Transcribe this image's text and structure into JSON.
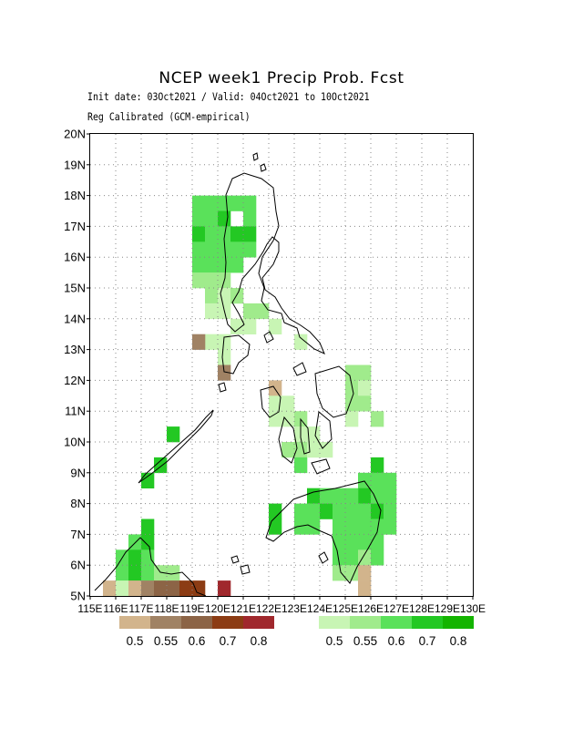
{
  "header": {
    "title": "NCEP week1 Precip Prob. Fcst",
    "subtitle_dates": "Init date: 03Oct2021 / Valid: 04Oct2021 to 10Oct2021",
    "subtitle_method": "Reg Calibrated (GCM-empirical)"
  },
  "axes": {
    "lat_labels": [
      "5N",
      "6N",
      "7N",
      "8N",
      "9N",
      "10N",
      "11N",
      "12N",
      "13N",
      "14N",
      "15N",
      "16N",
      "17N",
      "18N",
      "19N",
      "20N"
    ],
    "lon_labels": [
      "115E",
      "116E",
      "117E",
      "118E",
      "119E",
      "120E",
      "121E",
      "122E",
      "123E",
      "124E",
      "125E",
      "126E",
      "127E",
      "128E",
      "129E",
      "130E"
    ]
  },
  "colors": {
    "dry": [
      "#d2b48c",
      "#a08264",
      "#8c6446",
      "#8c3c14",
      "#a0282d"
    ],
    "wet": [
      "#c8f5b4",
      "#a0eb8c",
      "#5ae15a",
      "#23c823",
      "#14b400"
    ],
    "coast": "#000000",
    "grid": "#888888"
  },
  "legend": {
    "dry_labels": [
      "0.5",
      "0.55",
      "0.6",
      "0.7",
      "0.8"
    ],
    "wet_labels": [
      "0.5",
      "0.55",
      "0.6",
      "0.7",
      "0.8"
    ]
  },
  "chart_data": {
    "type": "heatmap",
    "xlim": [
      115,
      130
    ],
    "ylim": [
      5,
      20
    ],
    "cell_size_deg": 0.5,
    "legend_placement": "bottom",
    "grid": true,
    "cells": [
      {
        "lon": 119.25,
        "lat": 17.75,
        "cat": "wet",
        "level": 2
      },
      {
        "lon": 119.25,
        "lat": 17.25,
        "cat": "wet",
        "level": 2
      },
      {
        "lon": 119.25,
        "lat": 16.75,
        "cat": "wet",
        "level": 3
      },
      {
        "lon": 119.25,
        "lat": 16.25,
        "cat": "wet",
        "level": 2
      },
      {
        "lon": 119.75,
        "lat": 17.75,
        "cat": "wet",
        "level": 2
      },
      {
        "lon": 119.75,
        "lat": 17.25,
        "cat": "wet",
        "level": 2
      },
      {
        "lon": 119.75,
        "lat": 16.75,
        "cat": "wet",
        "level": 2
      },
      {
        "lon": 119.75,
        "lat": 16.25,
        "cat": "wet",
        "level": 2
      },
      {
        "lon": 120.25,
        "lat": 17.75,
        "cat": "wet",
        "level": 2
      },
      {
        "lon": 120.25,
        "lat": 17.25,
        "cat": "wet",
        "level": 3
      },
      {
        "lon": 120.25,
        "lat": 16.75,
        "cat": "wet",
        "level": 2
      },
      {
        "lon": 120.25,
        "lat": 16.25,
        "cat": "wet",
        "level": 2
      },
      {
        "lon": 120.75,
        "lat": 17.75,
        "cat": "wet",
        "level": 2
      },
      {
        "lon": 120.75,
        "lat": 16.75,
        "cat": "wet",
        "level": 3
      },
      {
        "lon": 120.75,
        "lat": 16.25,
        "cat": "wet",
        "level": 2
      },
      {
        "lon": 121.25,
        "lat": 17.75,
        "cat": "wet",
        "level": 2
      },
      {
        "lon": 121.25,
        "lat": 17.25,
        "cat": "wet",
        "level": 2
      },
      {
        "lon": 121.25,
        "lat": 16.75,
        "cat": "wet",
        "level": 3
      },
      {
        "lon": 121.25,
        "lat": 16.25,
        "cat": "wet",
        "level": 2
      },
      {
        "lon": 119.75,
        "lat": 15.75,
        "cat": "wet",
        "level": 2
      },
      {
        "lon": 120.25,
        "lat": 15.75,
        "cat": "wet",
        "level": 2
      },
      {
        "lon": 120.75,
        "lat": 15.75,
        "cat": "wet",
        "level": 2
      },
      {
        "lon": 119.25,
        "lat": 15.75,
        "cat": "wet",
        "level": 2
      },
      {
        "lon": 119.25,
        "lat": 15.25,
        "cat": "wet",
        "level": 1
      },
      {
        "lon": 119.75,
        "lat": 15.25,
        "cat": "wet",
        "level": 1
      },
      {
        "lon": 119.75,
        "lat": 14.75,
        "cat": "wet",
        "level": 1
      },
      {
        "lon": 120.25,
        "lat": 15.25,
        "cat": "wet",
        "level": 1
      },
      {
        "lon": 120.25,
        "lat": 14.75,
        "cat": "wet",
        "level": 0
      },
      {
        "lon": 120.25,
        "lat": 14.25,
        "cat": "wet",
        "level": 0
      },
      {
        "lon": 120.75,
        "lat": 14.75,
        "cat": "wet",
        "level": 1
      },
      {
        "lon": 121.25,
        "lat": 14.25,
        "cat": "wet",
        "level": 1
      },
      {
        "lon": 121.75,
        "lat": 14.25,
        "cat": "wet",
        "level": 1
      },
      {
        "lon": 121.25,
        "lat": 13.75,
        "cat": "wet",
        "level": 0
      },
      {
        "lon": 119.75,
        "lat": 14.25,
        "cat": "wet",
        "level": 0
      },
      {
        "lon": 120.75,
        "lat": 13.75,
        "cat": "wet",
        "level": 0
      },
      {
        "lon": 119.75,
        "lat": 13.25,
        "cat": "wet",
        "level": 0
      },
      {
        "lon": 120.25,
        "lat": 13.25,
        "cat": "wet",
        "level": 0
      },
      {
        "lon": 120.25,
        "lat": 12.75,
        "cat": "wet",
        "level": 0
      },
      {
        "lon": 119.25,
        "lat": 13.25,
        "cat": "dry",
        "level": 1
      },
      {
        "lon": 120.25,
        "lat": 12.25,
        "cat": "dry",
        "level": 1
      },
      {
        "lon": 122.25,
        "lat": 13.75,
        "cat": "wet",
        "level": 0
      },
      {
        "lon": 123.25,
        "lat": 13.25,
        "cat": "wet",
        "level": 0
      },
      {
        "lon": 122.25,
        "lat": 11.75,
        "cat": "dry",
        "level": 0
      },
      {
        "lon": 122.25,
        "lat": 11.25,
        "cat": "wet",
        "level": 0
      },
      {
        "lon": 122.25,
        "lat": 10.75,
        "cat": "wet",
        "level": 0
      },
      {
        "lon": 122.75,
        "lat": 11.25,
        "cat": "wet",
        "level": 0
      },
      {
        "lon": 122.75,
        "lat": 10.75,
        "cat": "wet",
        "level": 0
      },
      {
        "lon": 123.25,
        "lat": 10.75,
        "cat": "wet",
        "level": 1
      },
      {
        "lon": 123.25,
        "lat": 10.25,
        "cat": "wet",
        "level": 0
      },
      {
        "lon": 123.75,
        "lat": 10.25,
        "cat": "wet",
        "level": 0
      },
      {
        "lon": 122.75,
        "lat": 9.75,
        "cat": "wet",
        "level": 1
      },
      {
        "lon": 123.25,
        "lat": 9.75,
        "cat": "wet",
        "level": 1
      },
      {
        "lon": 123.25,
        "lat": 9.25,
        "cat": "wet",
        "level": 2
      },
      {
        "lon": 123.75,
        "lat": 9.75,
        "cat": "wet",
        "level": 0
      },
      {
        "lon": 124.25,
        "lat": 9.75,
        "cat": "wet",
        "level": 0
      },
      {
        "lon": 125.25,
        "lat": 12.25,
        "cat": "wet",
        "level": 1
      },
      {
        "lon": 125.75,
        "lat": 12.25,
        "cat": "wet",
        "level": 1
      },
      {
        "lon": 125.25,
        "lat": 11.75,
        "cat": "wet",
        "level": 1
      },
      {
        "lon": 125.75,
        "lat": 11.75,
        "cat": "wet",
        "level": 0
      },
      {
        "lon": 125.25,
        "lat": 11.25,
        "cat": "wet",
        "level": 1
      },
      {
        "lon": 125.75,
        "lat": 11.25,
        "cat": "wet",
        "level": 1
      },
      {
        "lon": 126.25,
        "lat": 10.75,
        "cat": "wet",
        "level": 1
      },
      {
        "lon": 125.25,
        "lat": 10.75,
        "cat": "wet",
        "level": 0
      },
      {
        "lon": 126.25,
        "lat": 9.25,
        "cat": "wet",
        "level": 3
      },
      {
        "lon": 125.75,
        "lat": 8.75,
        "cat": "wet",
        "level": 2
      },
      {
        "lon": 125.75,
        "lat": 8.25,
        "cat": "wet",
        "level": 3
      },
      {
        "lon": 126.25,
        "lat": 8.75,
        "cat": "wet",
        "level": 2
      },
      {
        "lon": 126.75,
        "lat": 8.75,
        "cat": "wet",
        "level": 2
      },
      {
        "lon": 124.75,
        "lat": 8.25,
        "cat": "wet",
        "level": 2
      },
      {
        "lon": 125.25,
        "lat": 8.25,
        "cat": "wet",
        "level": 2
      },
      {
        "lon": 126.25,
        "lat": 8.25,
        "cat": "wet",
        "level": 2
      },
      {
        "lon": 126.75,
        "lat": 8.25,
        "cat": "wet",
        "level": 2
      },
      {
        "lon": 123.75,
        "lat": 8.25,
        "cat": "wet",
        "level": 3
      },
      {
        "lon": 124.25,
        "lat": 8.25,
        "cat": "wet",
        "level": 2
      },
      {
        "lon": 123.75,
        "lat": 7.75,
        "cat": "wet",
        "level": 2
      },
      {
        "lon": 124.25,
        "lat": 7.75,
        "cat": "wet",
        "level": 3
      },
      {
        "lon": 124.75,
        "lat": 7.75,
        "cat": "wet",
        "level": 2
      },
      {
        "lon": 125.25,
        "lat": 7.75,
        "cat": "wet",
        "level": 2
      },
      {
        "lon": 125.75,
        "lat": 7.75,
        "cat": "wet",
        "level": 2
      },
      {
        "lon": 126.25,
        "lat": 7.75,
        "cat": "wet",
        "level": 3
      },
      {
        "lon": 126.75,
        "lat": 7.75,
        "cat": "wet",
        "level": 2
      },
      {
        "lon": 123.25,
        "lat": 7.75,
        "cat": "wet",
        "level": 2
      },
      {
        "lon": 123.25,
        "lat": 7.25,
        "cat": "wet",
        "level": 2
      },
      {
        "lon": 123.75,
        "lat": 7.25,
        "cat": "wet",
        "level": 2
      },
      {
        "lon": 124.75,
        "lat": 7.25,
        "cat": "wet",
        "level": 2
      },
      {
        "lon": 125.25,
        "lat": 7.25,
        "cat": "wet",
        "level": 2
      },
      {
        "lon": 125.75,
        "lat": 7.25,
        "cat": "wet",
        "level": 2
      },
      {
        "lon": 126.25,
        "lat": 7.25,
        "cat": "wet",
        "level": 2
      },
      {
        "lon": 126.75,
        "lat": 7.25,
        "cat": "wet",
        "level": 2
      },
      {
        "lon": 124.75,
        "lat": 6.75,
        "cat": "wet",
        "level": 2
      },
      {
        "lon": 125.25,
        "lat": 6.75,
        "cat": "wet",
        "level": 2
      },
      {
        "lon": 125.75,
        "lat": 6.75,
        "cat": "wet",
        "level": 2
      },
      {
        "lon": 126.25,
        "lat": 6.75,
        "cat": "wet",
        "level": 2
      },
      {
        "lon": 124.75,
        "lat": 6.25,
        "cat": "wet",
        "level": 2
      },
      {
        "lon": 125.25,
        "lat": 6.25,
        "cat": "wet",
        "level": 2
      },
      {
        "lon": 125.75,
        "lat": 6.25,
        "cat": "wet",
        "level": 1
      },
      {
        "lon": 126.25,
        "lat": 6.25,
        "cat": "wet",
        "level": 2
      },
      {
        "lon": 124.75,
        "lat": 5.75,
        "cat": "wet",
        "level": 1
      },
      {
        "lon": 125.25,
        "lat": 5.75,
        "cat": "wet",
        "level": 1
      },
      {
        "lon": 125.75,
        "lat": 5.75,
        "cat": "dry",
        "level": 0
      },
      {
        "lon": 125.75,
        "lat": 5.25,
        "cat": "dry",
        "level": 0
      },
      {
        "lon": 122.25,
        "lat": 7.75,
        "cat": "wet",
        "level": 3
      },
      {
        "lon": 122.25,
        "lat": 7.25,
        "cat": "wet",
        "level": 3
      },
      {
        "lon": 118.25,
        "lat": 10.25,
        "cat": "wet",
        "level": 3
      },
      {
        "lon": 117.75,
        "lat": 9.25,
        "cat": "wet",
        "level": 3
      },
      {
        "lon": 117.25,
        "lat": 8.75,
        "cat": "wet",
        "level": 3
      },
      {
        "lon": 116.25,
        "lat": 6.25,
        "cat": "wet",
        "level": 2
      },
      {
        "lon": 116.75,
        "lat": 6.75,
        "cat": "wet",
        "level": 2
      },
      {
        "lon": 117.25,
        "lat": 6.75,
        "cat": "wet",
        "level": 3
      },
      {
        "lon": 117.25,
        "lat": 7.25,
        "cat": "wet",
        "level": 3
      },
      {
        "lon": 116.75,
        "lat": 6.25,
        "cat": "wet",
        "level": 3
      },
      {
        "lon": 117.25,
        "lat": 6.25,
        "cat": "wet",
        "level": 2
      },
      {
        "lon": 116.25,
        "lat": 5.75,
        "cat": "wet",
        "level": 2
      },
      {
        "lon": 116.75,
        "lat": 5.75,
        "cat": "wet",
        "level": 3
      },
      {
        "lon": 117.25,
        "lat": 5.75,
        "cat": "wet",
        "level": 2
      },
      {
        "lon": 117.75,
        "lat": 5.75,
        "cat": "wet",
        "level": 1
      },
      {
        "lon": 118.25,
        "lat": 5.75,
        "cat": "wet",
        "level": 1
      },
      {
        "lon": 115.75,
        "lat": 5.25,
        "cat": "dry",
        "level": 0
      },
      {
        "lon": 116.25,
        "lat": 5.25,
        "cat": "wet",
        "level": 0
      },
      {
        "lon": 116.75,
        "lat": 5.25,
        "cat": "dry",
        "level": 0
      },
      {
        "lon": 117.25,
        "lat": 5.25,
        "cat": "dry",
        "level": 1
      },
      {
        "lon": 117.75,
        "lat": 5.25,
        "cat": "dry",
        "level": 2
      },
      {
        "lon": 118.25,
        "lat": 5.25,
        "cat": "dry",
        "level": 2
      },
      {
        "lon": 118.75,
        "lat": 5.25,
        "cat": "dry",
        "level": 3
      },
      {
        "lon": 119.25,
        "lat": 5.25,
        "cat": "dry",
        "level": 3
      },
      {
        "lon": 120.25,
        "lat": 5.25,
        "cat": "dry",
        "level": 4
      }
    ]
  }
}
